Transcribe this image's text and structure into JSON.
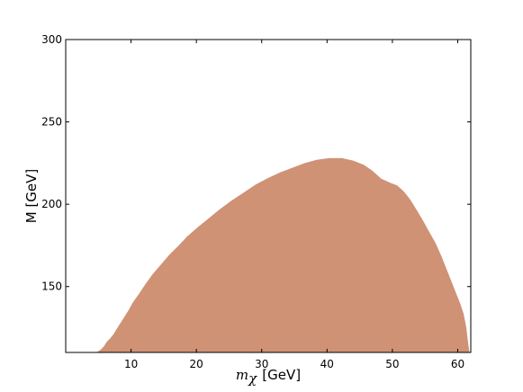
{
  "chart_data": {
    "type": "area",
    "title": "",
    "xlabel": {
      "symbol": "m",
      "subscript": "χ",
      "unit": "[GeV]"
    },
    "ylabel": "M [GeV]",
    "xlim": [
      0,
      62
    ],
    "ylim": [
      110,
      300
    ],
    "xticks": [
      10,
      20,
      30,
      40,
      50,
      60
    ],
    "yticks": [
      150,
      200,
      250,
      300
    ],
    "grid": false,
    "legend": "none",
    "fill_color": "#CF9275",
    "series": [
      {
        "name": "",
        "points": [
          [
            4.7,
            110.0
          ],
          [
            5.3,
            111.5
          ],
          [
            5.8,
            113.5
          ],
          [
            6.3,
            116.5
          ],
          [
            6.8,
            118.5
          ],
          [
            7.3,
            121.0
          ],
          [
            8.0,
            125.5
          ],
          [
            8.8,
            130.5
          ],
          [
            9.6,
            135.5
          ],
          [
            10.3,
            140.5
          ],
          [
            11.2,
            145.5
          ],
          [
            12.2,
            151.5
          ],
          [
            13.3,
            157.5
          ],
          [
            14.6,
            163.5
          ],
          [
            15.9,
            169.5
          ],
          [
            17.3,
            175.0
          ],
          [
            18.6,
            180.5
          ],
          [
            20.2,
            186.0
          ],
          [
            21.9,
            191.5
          ],
          [
            23.6,
            197.0
          ],
          [
            25.3,
            202.0
          ],
          [
            27.2,
            207.0
          ],
          [
            29.1,
            212.0
          ],
          [
            31.0,
            216.0
          ],
          [
            32.9,
            219.5
          ],
          [
            34.9,
            222.5
          ],
          [
            36.6,
            225.0
          ],
          [
            38.4,
            227.0
          ],
          [
            40.3,
            228.0
          ],
          [
            42.3,
            228.0
          ],
          [
            44.0,
            226.5
          ],
          [
            45.6,
            224.0
          ],
          [
            46.9,
            220.5
          ],
          [
            48.3,
            215.5
          ],
          [
            49.7,
            213.0
          ],
          [
            50.7,
            211.5
          ],
          [
            51.7,
            208.0
          ],
          [
            52.7,
            203.0
          ],
          [
            53.8,
            196.0
          ],
          [
            54.7,
            190.0
          ],
          [
            55.6,
            183.5
          ],
          [
            56.6,
            176.5
          ],
          [
            57.5,
            168.5
          ],
          [
            58.5,
            158.5
          ],
          [
            59.2,
            151.5
          ],
          [
            59.8,
            145.5
          ],
          [
            60.4,
            139.5
          ],
          [
            60.9,
            133.5
          ],
          [
            61.3,
            125.5
          ],
          [
            61.6,
            115.5
          ],
          [
            61.8,
            110.0
          ]
        ]
      }
    ]
  }
}
